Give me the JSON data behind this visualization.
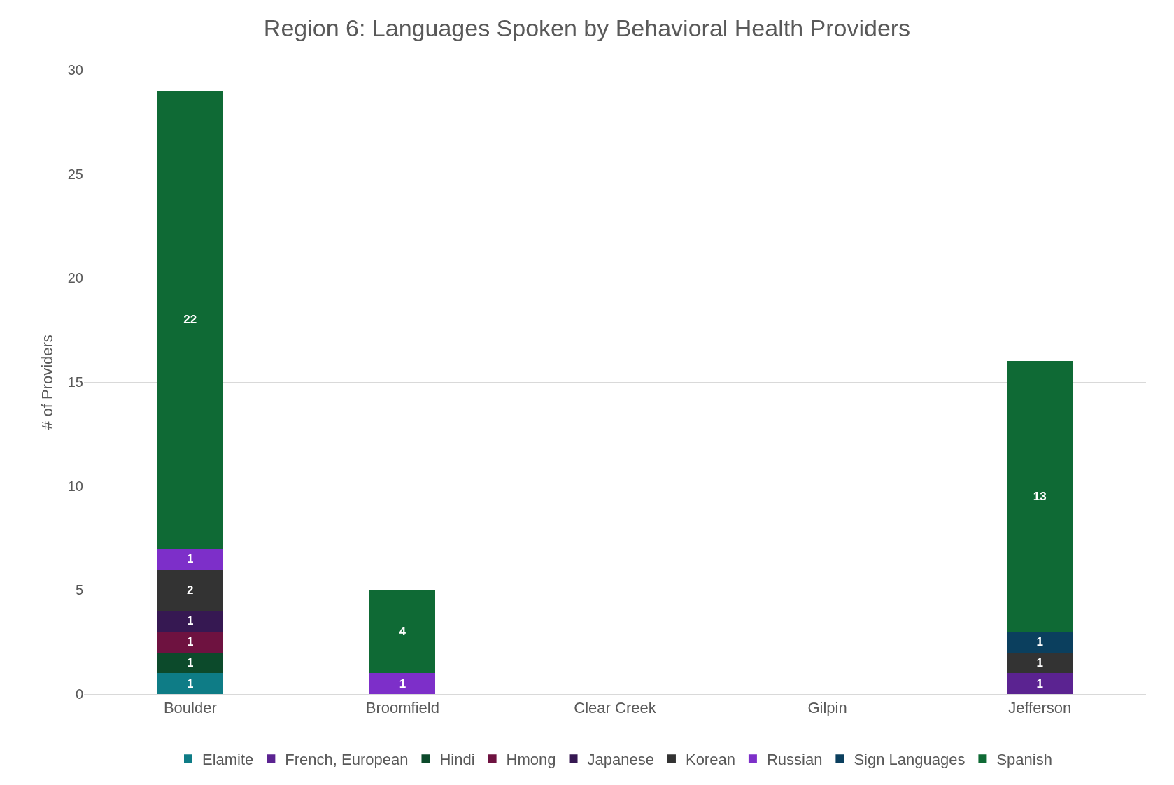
{
  "chart_data": {
    "type": "bar",
    "title": "Region 6: Languages Spoken by Behavioral Health Providers",
    "ylabel": "# of Providers",
    "categories": [
      "Boulder",
      "Broomfield",
      "Clear Creek",
      "Gilpin",
      "Jefferson"
    ],
    "stacked": true,
    "ylim": [
      0,
      30
    ],
    "yticks": [
      0,
      5,
      10,
      15,
      20,
      25,
      30
    ],
    "grid": "y",
    "legend": "bottom",
    "data_labels": true,
    "series": [
      {
        "name": "Elamite",
        "color": "#0e7c86",
        "values": [
          1,
          null,
          null,
          null,
          null
        ]
      },
      {
        "name": "French, European",
        "color": "#5b2391",
        "values": [
          null,
          null,
          null,
          null,
          1
        ]
      },
      {
        "name": "Hindi",
        "color": "#0c4a2b",
        "values": [
          1,
          null,
          null,
          null,
          null
        ]
      },
      {
        "name": "Hmong",
        "color": "#6e1240",
        "values": [
          1,
          null,
          null,
          null,
          null
        ]
      },
      {
        "name": "Japanese",
        "color": "#361852",
        "values": [
          1,
          null,
          null,
          null,
          null
        ]
      },
      {
        "name": "Korean",
        "color": "#333333",
        "values": [
          2,
          null,
          null,
          null,
          1
        ]
      },
      {
        "name": "Russian",
        "color": "#7d2fc9",
        "values": [
          1,
          1,
          null,
          null,
          null
        ]
      },
      {
        "name": "Sign Languages",
        "color": "#0b3f5e",
        "values": [
          null,
          null,
          null,
          null,
          1
        ]
      },
      {
        "name": "Spanish",
        "color": "#0f6a35",
        "values": [
          22,
          4,
          null,
          null,
          13
        ]
      }
    ]
  }
}
